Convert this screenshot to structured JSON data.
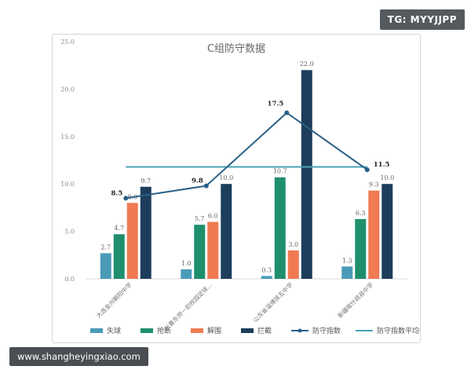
{
  "badges": {
    "tg": "TG: MYYJJPP",
    "url": "www.shangheyingxiao.com"
  },
  "chart_data": {
    "type": "bar",
    "title": "C组防守数据",
    "categories": [
      "大连金州朝阳中学",
      "长春东师一初校园足球…",
      "山东省淄博孩五中学",
      "新疆喀什疏县中学"
    ],
    "ylim": [
      0,
      25
    ],
    "yticks": [
      "0.0",
      "5.0",
      "10.0",
      "15.0",
      "20.0",
      "25.0"
    ],
    "series": [
      {
        "name": "失球",
        "color": "#4a9bb8",
        "values": [
          2.7,
          1.0,
          0.3,
          1.3
        ]
      },
      {
        "name": "抢断",
        "color": "#1f8f6e",
        "values": [
          4.7,
          5.7,
          10.7,
          6.3
        ]
      },
      {
        "name": "解围",
        "color": "#f07a52",
        "values": [
          8.0,
          6.0,
          3.0,
          9.3
        ]
      },
      {
        "name": "拦截",
        "color": "#1d3d5c",
        "values": [
          9.7,
          10.0,
          22.0,
          10.0
        ]
      }
    ],
    "line": {
      "name": "防守指数",
      "color": "#2a5f86",
      "values": [
        8.5,
        9.8,
        17.5,
        11.5
      ]
    },
    "hline": {
      "name": "防守指数平均值",
      "color": "#4aa3b6",
      "value": 11.8
    },
    "grid": false,
    "legend": "bottom"
  }
}
